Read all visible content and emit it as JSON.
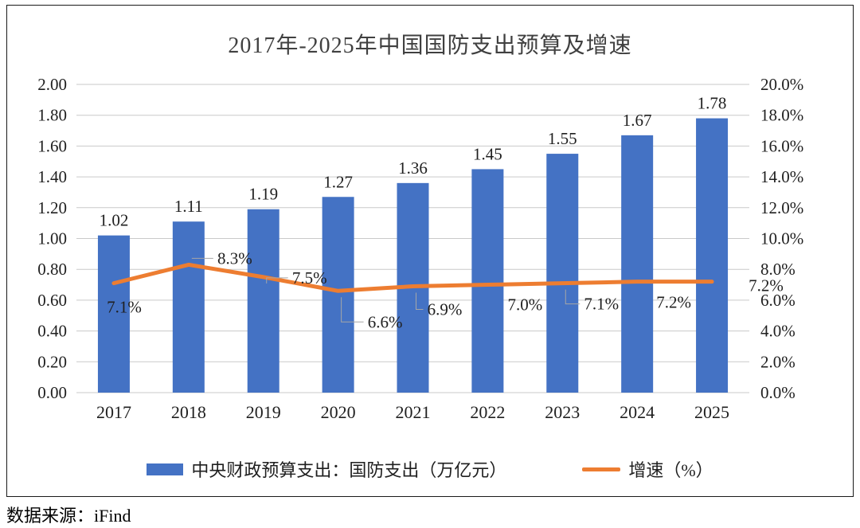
{
  "page": {
    "source": "数据来源：iFind"
  },
  "chart_data": {
    "type": "bar",
    "title": "2017年-2025年中国国防支出预算及增速",
    "categories": [
      "2017",
      "2018",
      "2019",
      "2020",
      "2021",
      "2022",
      "2023",
      "2024",
      "2025"
    ],
    "series": [
      {
        "name": "中央财政预算支出：国防支出（万亿元）",
        "type": "bar",
        "axis": "left",
        "color": "#4472C4",
        "values": [
          1.02,
          1.11,
          1.19,
          1.27,
          1.36,
          1.45,
          1.55,
          1.67,
          1.78
        ],
        "labels": [
          "1.02",
          "1.11",
          "1.19",
          "1.27",
          "1.36",
          "1.45",
          "1.55",
          "1.67",
          "1.78"
        ]
      },
      {
        "name": "增速（%）",
        "type": "line",
        "axis": "right",
        "color": "#ED7D31",
        "values": [
          7.1,
          8.3,
          7.5,
          6.6,
          6.9,
          7.0,
          7.1,
          7.2,
          7.2
        ],
        "labels": [
          "7.1%",
          "8.3%",
          "7.5%",
          "6.6%",
          "6.9%",
          "7.0%",
          "7.1%",
          "7.2%",
          "7.2%"
        ]
      }
    ],
    "axes": {
      "left": {
        "min": 0,
        "max": 2,
        "step": 0.2,
        "ticks": [
          "0.00",
          "0.20",
          "0.40",
          "0.60",
          "0.80",
          "1.00",
          "1.20",
          "1.40",
          "1.60",
          "1.80",
          "2.00"
        ]
      },
      "right": {
        "min": 0,
        "max": 20,
        "step": 2,
        "ticks": [
          "0.0%",
          "2.0%",
          "4.0%",
          "6.0%",
          "8.0%",
          "10.0%",
          "12.0%",
          "14.0%",
          "16.0%",
          "18.0%",
          "20.0%"
        ]
      }
    },
    "grid": true,
    "legend_position": "bottom",
    "colors": {
      "bar": "#4472C4",
      "line": "#ED7D31",
      "grid": "#C9C9C9",
      "axis_text": "#1f1f1f",
      "title_text": "#404040",
      "leader": "#A6A6A6"
    }
  }
}
